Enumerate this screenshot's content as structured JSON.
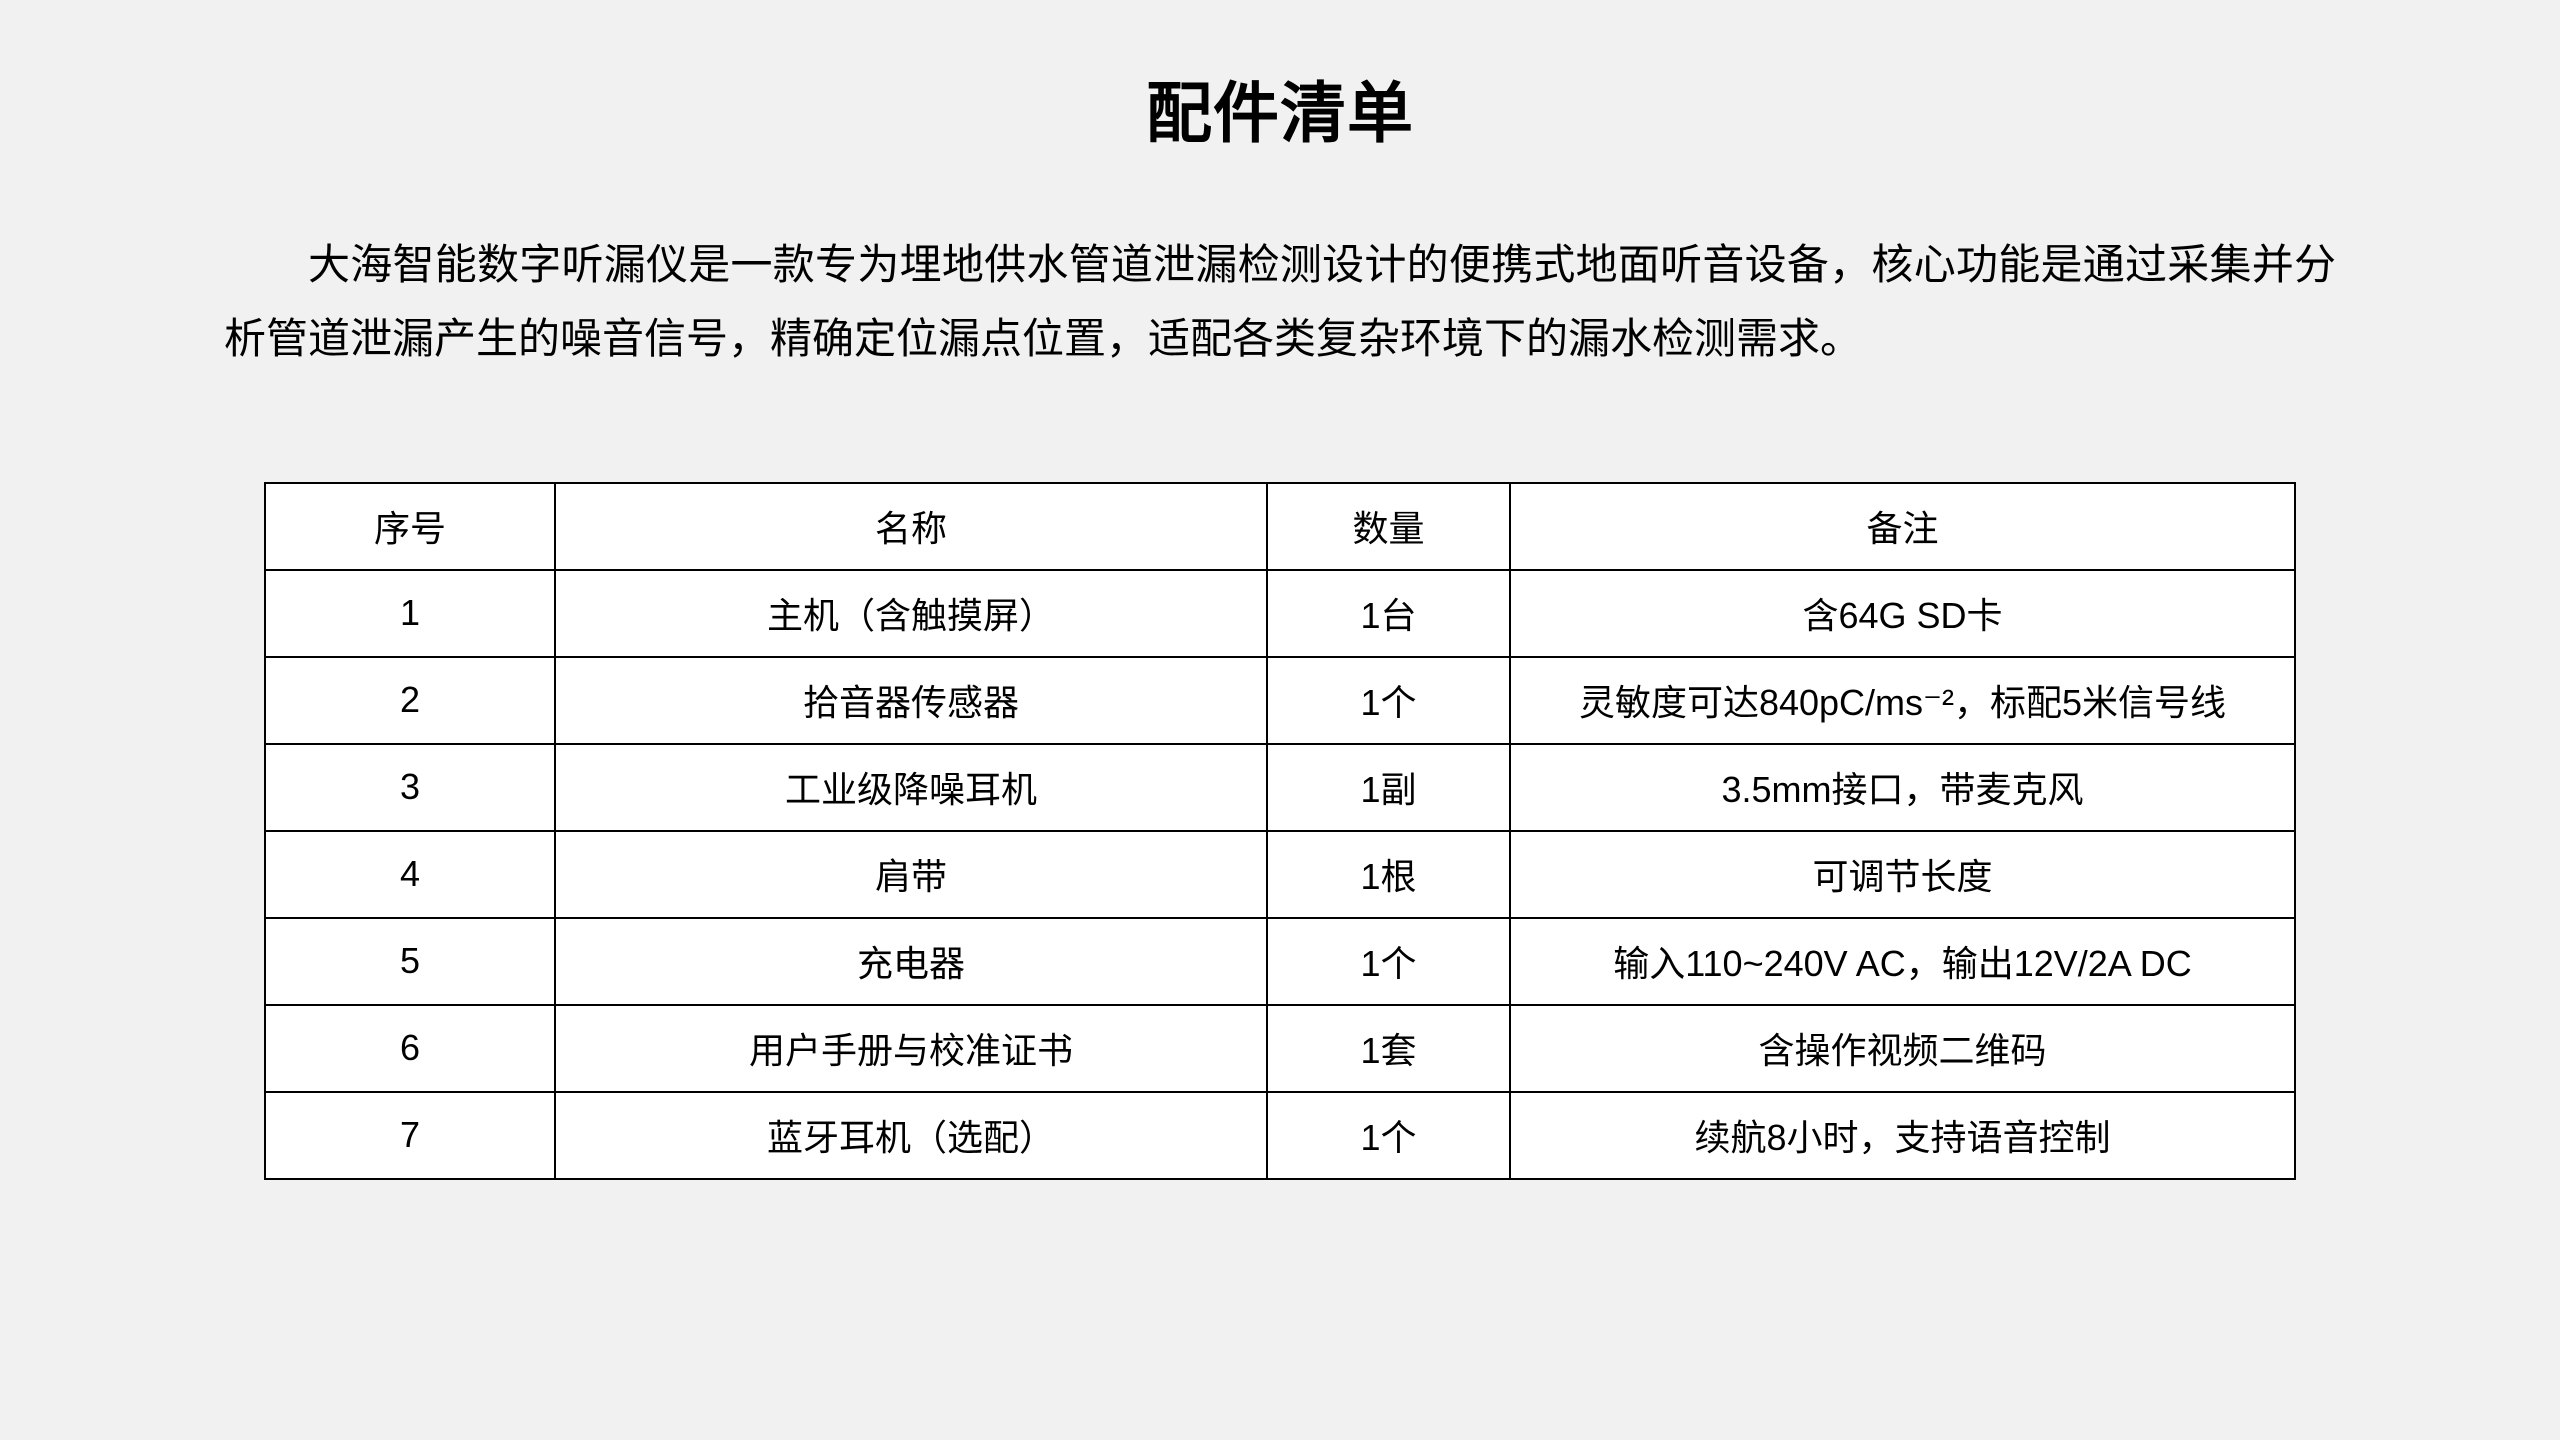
{
  "page": {
    "background_color": "#f1f1f1",
    "table_background_color": "#ffffff",
    "border_color": "#000000",
    "text_color": "#000000"
  },
  "document": {
    "title": "配件清单",
    "intro": "大海智能数字听漏仪是一款专为埋地供水管道泄漏检测设计的便携式地面听音设备，核心功能是通过采集并分析管道泄漏产生的噪音信号，精确定位漏点位置，适配各类复杂环境下的漏水检测需求。"
  },
  "table": {
    "headers": [
      "序号",
      "名称",
      "数量",
      "备注"
    ],
    "rows": [
      {
        "no": "1",
        "name": "主机（含触摸屏）",
        "qty": "1台",
        "remark": "含64G SD卡"
      },
      {
        "no": "2",
        "name": "拾音器传感器",
        "qty": "1个",
        "remark": "灵敏度可达840pC/ms⁻²，标配5米信号线"
      },
      {
        "no": "3",
        "name": "工业级降噪耳机",
        "qty": "1副",
        "remark": "3.5mm接口，带麦克风"
      },
      {
        "no": "4",
        "name": "肩带",
        "qty": "1根",
        "remark": "可调节长度"
      },
      {
        "no": "5",
        "name": "充电器",
        "qty": "1个",
        "remark": "输入110~240V AC，输出12V/2A DC"
      },
      {
        "no": "6",
        "name": "用户手册与校准证书",
        "qty": "1套",
        "remark": "含操作视频二维码"
      },
      {
        "no": "7",
        "name": "蓝牙耳机（选配）",
        "qty": "1个",
        "remark": "续航8小时，支持语音控制"
      }
    ]
  }
}
